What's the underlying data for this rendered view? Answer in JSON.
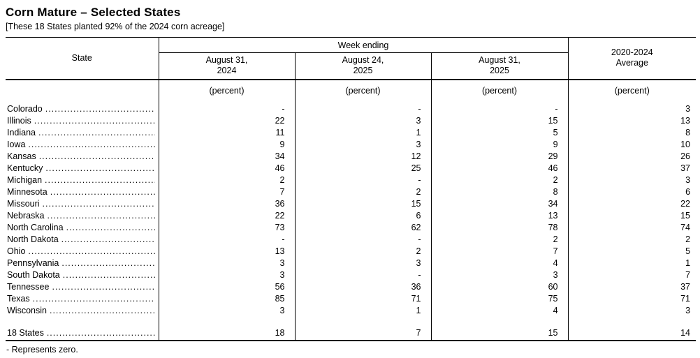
{
  "page": {
    "title": "Corn Mature – Selected States",
    "subtitle": "[These 18 States planted 92% of the 2024 corn acreage]",
    "footnote": "- Represents zero."
  },
  "table": {
    "state_header": "State",
    "group_header": "Week ending",
    "week_columns": [
      "August 31,\n2024",
      "August 24,\n2025",
      "August 31,\n2025"
    ],
    "avg_header": "2020-2024\nAverage",
    "unit_label": "(percent)",
    "dash_meaning": "Represents zero",
    "rows": [
      {
        "state": "Colorado",
        "values": [
          "-",
          "-",
          "-",
          "3"
        ]
      },
      {
        "state": "Illinois",
        "values": [
          "22",
          "3",
          "15",
          "13"
        ]
      },
      {
        "state": "Indiana",
        "values": [
          "11",
          "1",
          "5",
          "8"
        ]
      },
      {
        "state": "Iowa",
        "values": [
          "9",
          "3",
          "9",
          "10"
        ]
      },
      {
        "state": "Kansas",
        "values": [
          "34",
          "12",
          "29",
          "26"
        ]
      },
      {
        "state": "Kentucky",
        "values": [
          "46",
          "25",
          "46",
          "37"
        ]
      },
      {
        "state": "Michigan",
        "values": [
          "2",
          "-",
          "2",
          "3"
        ]
      },
      {
        "state": "Minnesota",
        "values": [
          "7",
          "2",
          "8",
          "6"
        ]
      },
      {
        "state": "Missouri",
        "values": [
          "36",
          "15",
          "34",
          "22"
        ]
      },
      {
        "state": "Nebraska",
        "values": [
          "22",
          "6",
          "13",
          "15"
        ]
      },
      {
        "state": "North Carolina",
        "values": [
          "73",
          "62",
          "78",
          "74"
        ]
      },
      {
        "state": "North Dakota",
        "values": [
          "-",
          "-",
          "2",
          "2"
        ]
      },
      {
        "state": "Ohio",
        "values": [
          "13",
          "2",
          "7",
          "5"
        ]
      },
      {
        "state": "Pennsylvania",
        "values": [
          "3",
          "3",
          "4",
          "1"
        ]
      },
      {
        "state": "South Dakota",
        "values": [
          "3",
          "-",
          "3",
          "7"
        ]
      },
      {
        "state": "Tennessee",
        "values": [
          "56",
          "36",
          "60",
          "37"
        ]
      },
      {
        "state": "Texas",
        "values": [
          "85",
          "71",
          "75",
          "71"
        ]
      },
      {
        "state": "Wisconsin",
        "values": [
          "3",
          "1",
          "4",
          "3"
        ]
      }
    ],
    "total_row": {
      "state": "18 States",
      "values": [
        "18",
        "7",
        "15",
        "14"
      ]
    }
  }
}
